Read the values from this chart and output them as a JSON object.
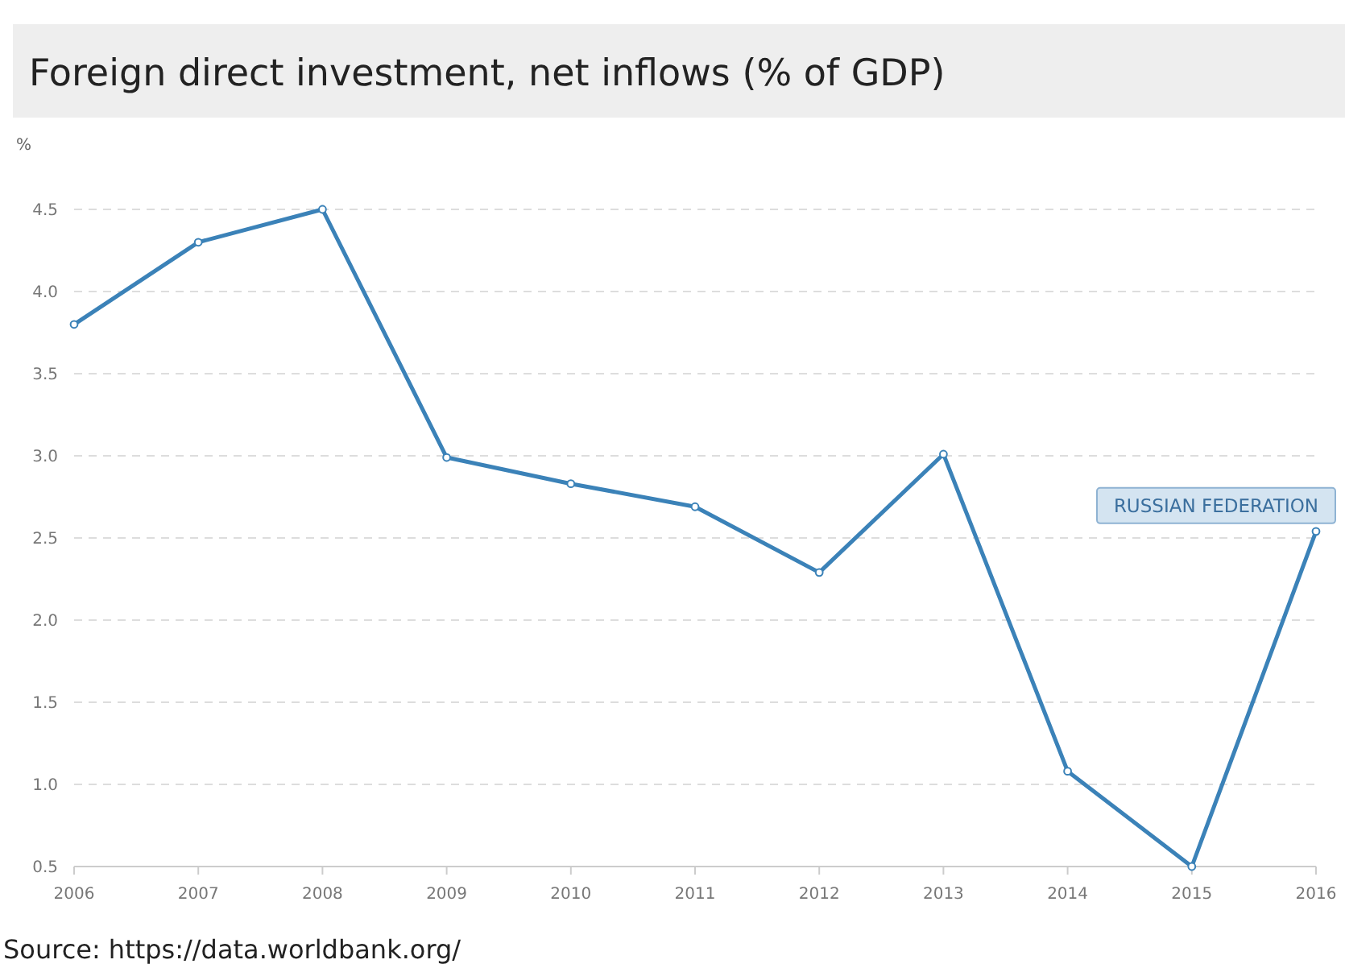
{
  "chart_data": {
    "type": "line",
    "title": "Foreign direct investment, net inflows (% of GDP)",
    "ylabel": "%",
    "x": [
      2006,
      2007,
      2008,
      2009,
      2010,
      2011,
      2012,
      2013,
      2014,
      2015,
      2016
    ],
    "series": [
      {
        "name": "RUSSIAN FEDERATION",
        "color": "#3b82b8",
        "values": [
          3.8,
          4.3,
          4.5,
          2.99,
          2.83,
          2.69,
          2.29,
          3.01,
          1.08,
          0.5,
          2.54
        ]
      }
    ],
    "xlim": [
      2006,
      2016
    ],
    "xticks": [
      2006,
      2007,
      2008,
      2009,
      2010,
      2011,
      2012,
      2013,
      2014,
      2015,
      2016
    ],
    "ylim": [
      0.5,
      4.5
    ],
    "yticks": [
      {
        "value": 0.5,
        "label": "0.5"
      },
      {
        "value": 1,
        "label": "1.0"
      },
      {
        "value": 1.5,
        "label": "1.5"
      },
      {
        "value": 2,
        "label": "2.0"
      },
      {
        "value": 2.5,
        "label": "2.5"
      },
      {
        "value": 3,
        "label": "3.0"
      },
      {
        "value": 3.5,
        "label": "3.5"
      },
      {
        "value": 4,
        "label": "4.0"
      },
      {
        "value": 4.5,
        "label": "4.5"
      }
    ],
    "grid": "y",
    "marker": "circle",
    "line_style": "solid",
    "annotations": [
      "Source: https://data.worldbank.org/"
    ]
  }
}
